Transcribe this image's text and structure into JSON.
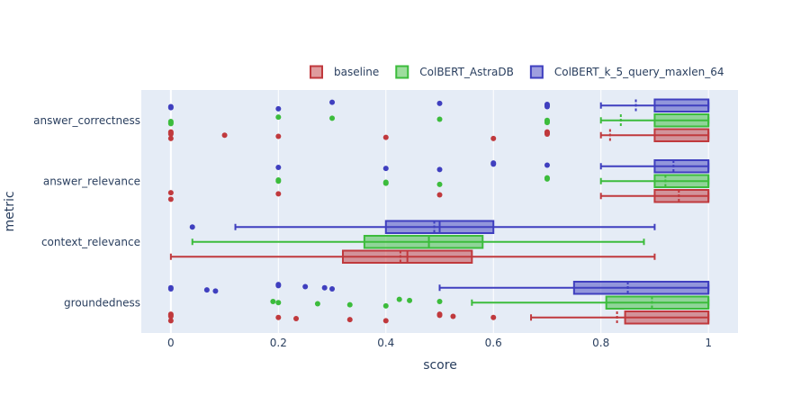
{
  "chart_data": {
    "type": "box",
    "orientation": "horizontal",
    "xlabel": "score",
    "ylabel": "metric",
    "xlim": [
      -0.055,
      1.055
    ],
    "xticks": [
      0,
      0.2,
      0.4,
      0.6,
      0.8,
      1
    ],
    "xtick_labels": [
      "0",
      "0.2",
      "0.4",
      "0.6",
      "0.8",
      "1"
    ],
    "categories": [
      "answer_correctness",
      "answer_relevance",
      "context_relevance",
      "groundedness"
    ],
    "legend_position": "top-right",
    "grid": true,
    "series": [
      {
        "name": "baseline",
        "color": "#c0393d",
        "fill": "rgba(192,57,61,0.5)",
        "boxes": [
          {
            "category": "answer_correctness",
            "q1": 0.9,
            "median": 1,
            "q3": 1,
            "lower": 0.8,
            "upper": 1,
            "mean": 0.817,
            "outliers": [
              0,
              0,
              0,
              0,
              0.1,
              0.2,
              0.4,
              0.6,
              0.7,
              0.7,
              0.7,
              0.7
            ]
          },
          {
            "category": "answer_relevance",
            "q1": 0.9,
            "median": 1,
            "q3": 1,
            "lower": 0.8,
            "upper": 1,
            "mean": 0.945,
            "outliers": [
              0,
              0,
              0.2,
              0.5
            ]
          },
          {
            "category": "context_relevance",
            "q1": 0.32,
            "median": 0.44,
            "q3": 0.56,
            "lower": 0,
            "upper": 0.9,
            "mean": 0.427,
            "outliers": []
          },
          {
            "category": "groundedness",
            "q1": 0.845,
            "median": 1,
            "q3": 1,
            "lower": 0.67,
            "upper": 1,
            "mean": 0.83,
            "outliers": [
              0,
              0,
              0,
              0,
              0.2,
              0.233,
              0.333,
              0.4,
              0.5,
              0.5,
              0.525,
              0.6
            ]
          }
        ]
      },
      {
        "name": "ColBERT_AstraDB",
        "color": "#3cbc3c",
        "fill": "rgba(60,188,60,0.5)",
        "boxes": [
          {
            "category": "answer_correctness",
            "q1": 0.9,
            "median": 1,
            "q3": 1,
            "lower": 0.8,
            "upper": 1,
            "mean": 0.837,
            "outliers": [
              0,
              0,
              0,
              0.2,
              0.3,
              0.5,
              0.7,
              0.7,
              0.7
            ]
          },
          {
            "category": "answer_relevance",
            "q1": 0.9,
            "median": 1,
            "q3": 1,
            "lower": 0.8,
            "upper": 1,
            "mean": 0.92,
            "outliers": [
              0.2,
              0.2,
              0.4,
              0.4,
              0.5,
              0.7,
              0.7
            ]
          },
          {
            "category": "context_relevance",
            "q1": 0.36,
            "median": 0.48,
            "q3": 0.58,
            "lower": 0.04,
            "upper": 0.88,
            "mean": 0.48,
            "outliers": []
          },
          {
            "category": "groundedness",
            "q1": 0.81,
            "median": 1,
            "q3": 1,
            "lower": 0.56,
            "upper": 1,
            "mean": 0.895,
            "outliers": [
              0.19,
              0.2,
              0.273,
              0.333,
              0.4,
              0.425,
              0.444,
              0.5
            ]
          }
        ]
      },
      {
        "name": "ColBERT_k_5_query_maxlen_64",
        "color": "#3f3fbf",
        "fill": "rgba(63,63,191,0.5)",
        "boxes": [
          {
            "category": "answer_correctness",
            "q1": 0.9,
            "median": 1,
            "q3": 1,
            "lower": 0.8,
            "upper": 1,
            "mean": 0.865,
            "outliers": [
              0,
              0,
              0.2,
              0.3,
              0.5,
              0.7,
              0.7,
              0.7
            ]
          },
          {
            "category": "answer_relevance",
            "q1": 0.9,
            "median": 1,
            "q3": 1,
            "lower": 0.8,
            "upper": 1,
            "mean": 0.935,
            "outliers": [
              0.2,
              0.4,
              0.5,
              0.6,
              0.6,
              0.7
            ]
          },
          {
            "category": "context_relevance",
            "q1": 0.4,
            "median": 0.5,
            "q3": 0.6,
            "lower": 0.12,
            "upper": 0.9,
            "mean": 0.49,
            "outliers": [
              0.04
            ]
          },
          {
            "category": "groundedness",
            "q1": 0.75,
            "median": 1,
            "q3": 1,
            "lower": 0.5,
            "upper": 1,
            "mean": 0.85,
            "outliers": [
              0,
              0,
              0.067,
              0.083,
              0.2,
              0.2,
              0.25,
              0.286,
              0.3
            ]
          }
        ]
      }
    ]
  }
}
